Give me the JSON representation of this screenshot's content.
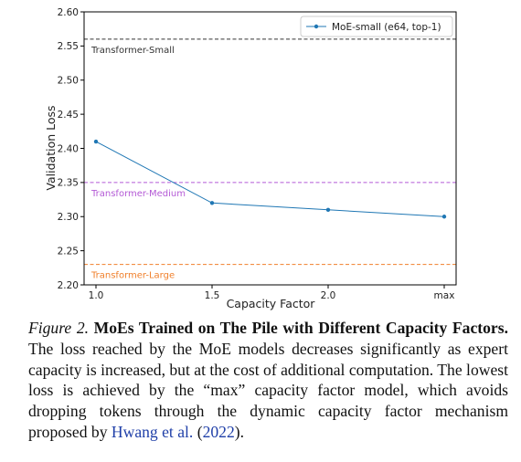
{
  "chart_data": {
    "type": "line",
    "categories": [
      "1.0",
      "1.5",
      "2.0",
      "max"
    ],
    "series": [
      {
        "name": "MoE-small (e64, top-1)",
        "values": [
          2.41,
          2.32,
          2.31,
          2.3
        ],
        "color": "#1f77b4"
      }
    ],
    "reference_lines": [
      {
        "label": "Transformer-Small",
        "value": 2.56,
        "color": "#333333"
      },
      {
        "label": "Transformer-Medium",
        "value": 2.35,
        "color": "#b45ad6"
      },
      {
        "label": "Transformer-Large",
        "value": 2.23,
        "color": "#f07f2a"
      }
    ],
    "xlabel": "Capacity Factor",
    "ylabel": "Validation Loss",
    "ylim": [
      2.2,
      2.6
    ],
    "yticks": [
      "2.20",
      "2.25",
      "2.30",
      "2.35",
      "2.40",
      "2.45",
      "2.50",
      "2.55",
      "2.60"
    ],
    "grid": false,
    "legend_position": "top-right"
  },
  "caption": {
    "label": "Figure 2.",
    "title": "MoEs Trained on The Pile with Different Capacity Factors.",
    "text_before_cite": "The loss reached by the MoE models decreases significantly as expert capacity is increased, but at the cost of additional computation. The lowest loss is achieved by the “max” capacity factor model, which avoids dropping tokens through the dynamic capacity factor mechanism proposed by",
    "cite_author": "Hwang et al.",
    "cite_year": "2022",
    "text_after_cite": "."
  }
}
